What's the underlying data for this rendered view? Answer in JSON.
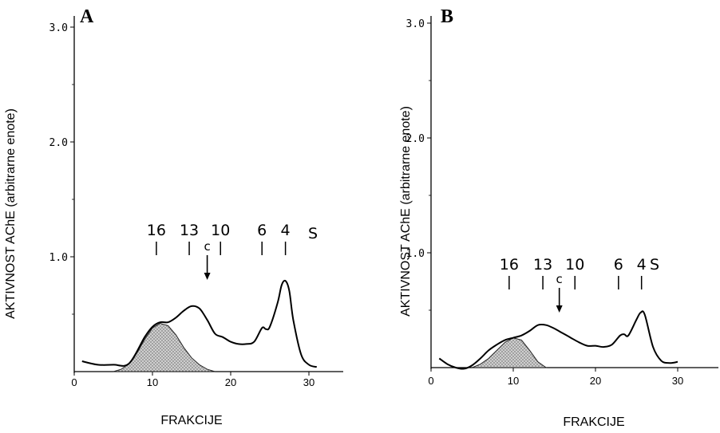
{
  "chart_data": [
    {
      "type": "line",
      "panel": "A",
      "xlabel": "FRAKCIJE",
      "ylabel": "AKTIVNOST AChE (arbitrarne enote)",
      "xlim": [
        0,
        35
      ],
      "ylim": [
        0,
        3.0
      ],
      "x_ticks": [
        0,
        10,
        20,
        30
      ],
      "x_tick_labels": [
        "0",
        "10",
        "20",
        "30"
      ],
      "y_ticks": [
        1.0,
        2.0,
        3.0
      ],
      "y_tick_labels": [
        "1.0",
        "2.0",
        "3.0"
      ],
      "grid": false,
      "series": [
        {
          "x": [
            1,
            3,
            5,
            7,
            9,
            10,
            11,
            12,
            13,
            14,
            15,
            16,
            17,
            18,
            19,
            20,
            21,
            22,
            23,
            24,
            24.5,
            25,
            26,
            26.5,
            27,
            27.5,
            28,
            29,
            30,
            31
          ],
          "y": [
            0.09,
            0.06,
            0.06,
            0.07,
            0.3,
            0.39,
            0.43,
            0.43,
            0.47,
            0.53,
            0.57,
            0.55,
            0.45,
            0.33,
            0.3,
            0.26,
            0.24,
            0.24,
            0.26,
            0.38,
            0.37,
            0.39,
            0.6,
            0.75,
            0.79,
            0.7,
            0.45,
            0.15,
            0.06,
            0.04
          ]
        }
      ],
      "shaded_area": {
        "x": [
          5,
          6,
          7,
          8,
          9,
          10,
          11,
          12,
          13,
          14,
          15,
          16,
          17,
          18
        ],
        "y": [
          0.0,
          0.02,
          0.07,
          0.16,
          0.28,
          0.38,
          0.42,
          0.4,
          0.32,
          0.21,
          0.12,
          0.06,
          0.02,
          0.0
        ]
      },
      "markers": [
        {
          "label": "16",
          "x": 10.5
        },
        {
          "label": "13",
          "x": 14.7
        },
        {
          "label": "10",
          "x": 18.7
        },
        {
          "label": "6",
          "x": 24.0
        },
        {
          "label": "4",
          "x": 27.0
        }
      ],
      "s_label": "S",
      "c_annotation": {
        "label": "c",
        "x": 17.0
      }
    },
    {
      "type": "line",
      "panel": "B",
      "xlabel": "FRAKCIJE",
      "ylabel": "AKTIVNOST AChE (arbitrarne enote)",
      "xlim": [
        0,
        35
      ],
      "ylim": [
        0,
        3.0
      ],
      "x_ticks": [
        0,
        10,
        20,
        30
      ],
      "x_tick_labels": [
        "0",
        "10",
        "20",
        "30"
      ],
      "y_ticks": [
        1.0,
        2.0,
        3.0
      ],
      "y_tick_labels": [
        "1.0",
        "2.0",
        "3.0"
      ],
      "grid": false,
      "series": [
        {
          "x": [
            1,
            2,
            3,
            4,
            5,
            6,
            7,
            8,
            9,
            10,
            11,
            12,
            13,
            14,
            15,
            16,
            17,
            18,
            19,
            20,
            21,
            22,
            23,
            23.5,
            24,
            25,
            25.5,
            26,
            27,
            28,
            29,
            30
          ],
          "y": [
            0.08,
            0.03,
            0.0,
            -0.01,
            0.02,
            0.08,
            0.15,
            0.2,
            0.24,
            0.26,
            0.28,
            0.32,
            0.37,
            0.37,
            0.34,
            0.3,
            0.26,
            0.22,
            0.19,
            0.19,
            0.18,
            0.2,
            0.28,
            0.29,
            0.28,
            0.42,
            0.48,
            0.46,
            0.18,
            0.06,
            0.04,
            0.05
          ]
        }
      ],
      "shaded_area": {
        "x": [
          5,
          6,
          7,
          8,
          9,
          10,
          11,
          12,
          13,
          14
        ],
        "y": [
          0.0,
          0.03,
          0.08,
          0.15,
          0.22,
          0.26,
          0.24,
          0.15,
          0.05,
          0.0
        ]
      },
      "markers": [
        {
          "label": "16",
          "x": 9.5
        },
        {
          "label": "13",
          "x": 13.6
        },
        {
          "label": "10",
          "x": 17.5
        },
        {
          "label": "6",
          "x": 22.8
        },
        {
          "label": "4",
          "x": 25.6
        }
      ],
      "s_label": "S",
      "c_annotation": {
        "label": "c",
        "x": 15.6
      }
    }
  ]
}
